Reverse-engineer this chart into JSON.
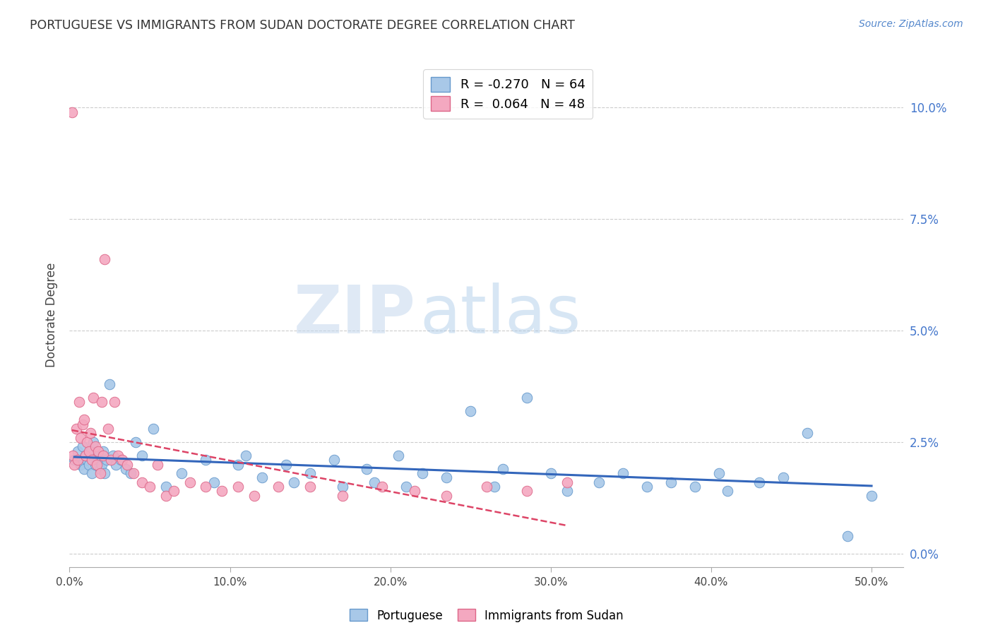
{
  "title": "PORTUGUESE VS IMMIGRANTS FROM SUDAN DOCTORATE DEGREE CORRELATION CHART",
  "source": "Source: ZipAtlas.com",
  "ylabel": "Doctorate Degree",
  "ytick_values": [
    0.0,
    2.5,
    5.0,
    7.5,
    10.0
  ],
  "xlim": [
    0.0,
    52.0
  ],
  "ylim": [
    -0.3,
    11.0
  ],
  "plot_ylim": [
    -0.3,
    11.0
  ],
  "portuguese_color": "#a8c8e8",
  "sudan_color": "#f4a8c0",
  "portuguese_edge": "#6699cc",
  "sudan_edge": "#dd6688",
  "trend_portuguese_color": "#3366bb",
  "trend_sudan_color": "#dd4466",
  "legend_r_portuguese": "-0.270",
  "legend_n_portuguese": "64",
  "legend_r_sudan": " 0.064",
  "legend_n_sudan": "48",
  "watermark_zip": "ZIP",
  "watermark_atlas": "atlas",
  "portuguese_x": [
    0.3,
    0.5,
    0.7,
    0.8,
    0.9,
    1.0,
    1.1,
    1.2,
    1.3,
    1.4,
    1.5,
    1.6,
    1.7,
    1.8,
    1.9,
    2.0,
    2.1,
    2.2,
    2.3,
    2.5,
    2.7,
    2.9,
    3.2,
    3.5,
    3.8,
    4.1,
    4.5,
    5.2,
    6.0,
    7.0,
    8.5,
    9.0,
    10.5,
    11.0,
    12.0,
    13.5,
    14.0,
    15.0,
    16.5,
    17.0,
    18.5,
    19.0,
    20.5,
    21.0,
    22.0,
    23.5,
    25.0,
    26.5,
    27.0,
    28.5,
    30.0,
    31.0,
    33.0,
    34.5,
    36.0,
    37.5,
    39.0,
    40.5,
    41.0,
    43.0,
    44.5,
    46.0,
    48.5,
    50.0
  ],
  "portuguese_y": [
    2.1,
    2.3,
    2.0,
    2.4,
    1.9,
    2.2,
    2.1,
    2.0,
    2.3,
    1.8,
    2.5,
    2.0,
    2.2,
    2.1,
    1.9,
    2.0,
    2.3,
    1.8,
    2.1,
    3.8,
    2.2,
    2.0,
    2.1,
    1.9,
    1.8,
    2.5,
    2.2,
    2.8,
    1.5,
    1.8,
    2.1,
    1.6,
    2.0,
    2.2,
    1.7,
    2.0,
    1.6,
    1.8,
    2.1,
    1.5,
    1.9,
    1.6,
    2.2,
    1.5,
    1.8,
    1.7,
    3.2,
    1.5,
    1.9,
    3.5,
    1.8,
    1.4,
    1.6,
    1.8,
    1.5,
    1.6,
    1.5,
    1.8,
    1.4,
    1.6,
    1.7,
    2.7,
    0.4,
    1.3
  ],
  "sudan_x": [
    0.15,
    0.2,
    0.3,
    0.4,
    0.5,
    0.6,
    0.7,
    0.8,
    0.9,
    1.0,
    1.1,
    1.2,
    1.3,
    1.4,
    1.5,
    1.6,
    1.7,
    1.8,
    1.9,
    2.0,
    2.1,
    2.2,
    2.4,
    2.6,
    2.8,
    3.0,
    3.3,
    3.6,
    4.0,
    4.5,
    5.0,
    5.5,
    6.0,
    6.5,
    7.5,
    8.5,
    9.5,
    10.5,
    11.5,
    13.0,
    15.0,
    17.0,
    19.5,
    21.5,
    23.5,
    26.0,
    28.5,
    31.0
  ],
  "sudan_y": [
    9.9,
    2.2,
    2.0,
    2.8,
    2.1,
    3.4,
    2.6,
    2.9,
    3.0,
    2.2,
    2.5,
    2.3,
    2.7,
    2.1,
    3.5,
    2.4,
    2.0,
    2.3,
    1.8,
    3.4,
    2.2,
    6.6,
    2.8,
    2.1,
    3.4,
    2.2,
    2.1,
    2.0,
    1.8,
    1.6,
    1.5,
    2.0,
    1.3,
    1.4,
    1.6,
    1.5,
    1.4,
    1.5,
    1.3,
    1.5,
    1.5,
    1.3,
    1.5,
    1.4,
    1.3,
    1.5,
    1.4,
    1.6
  ]
}
